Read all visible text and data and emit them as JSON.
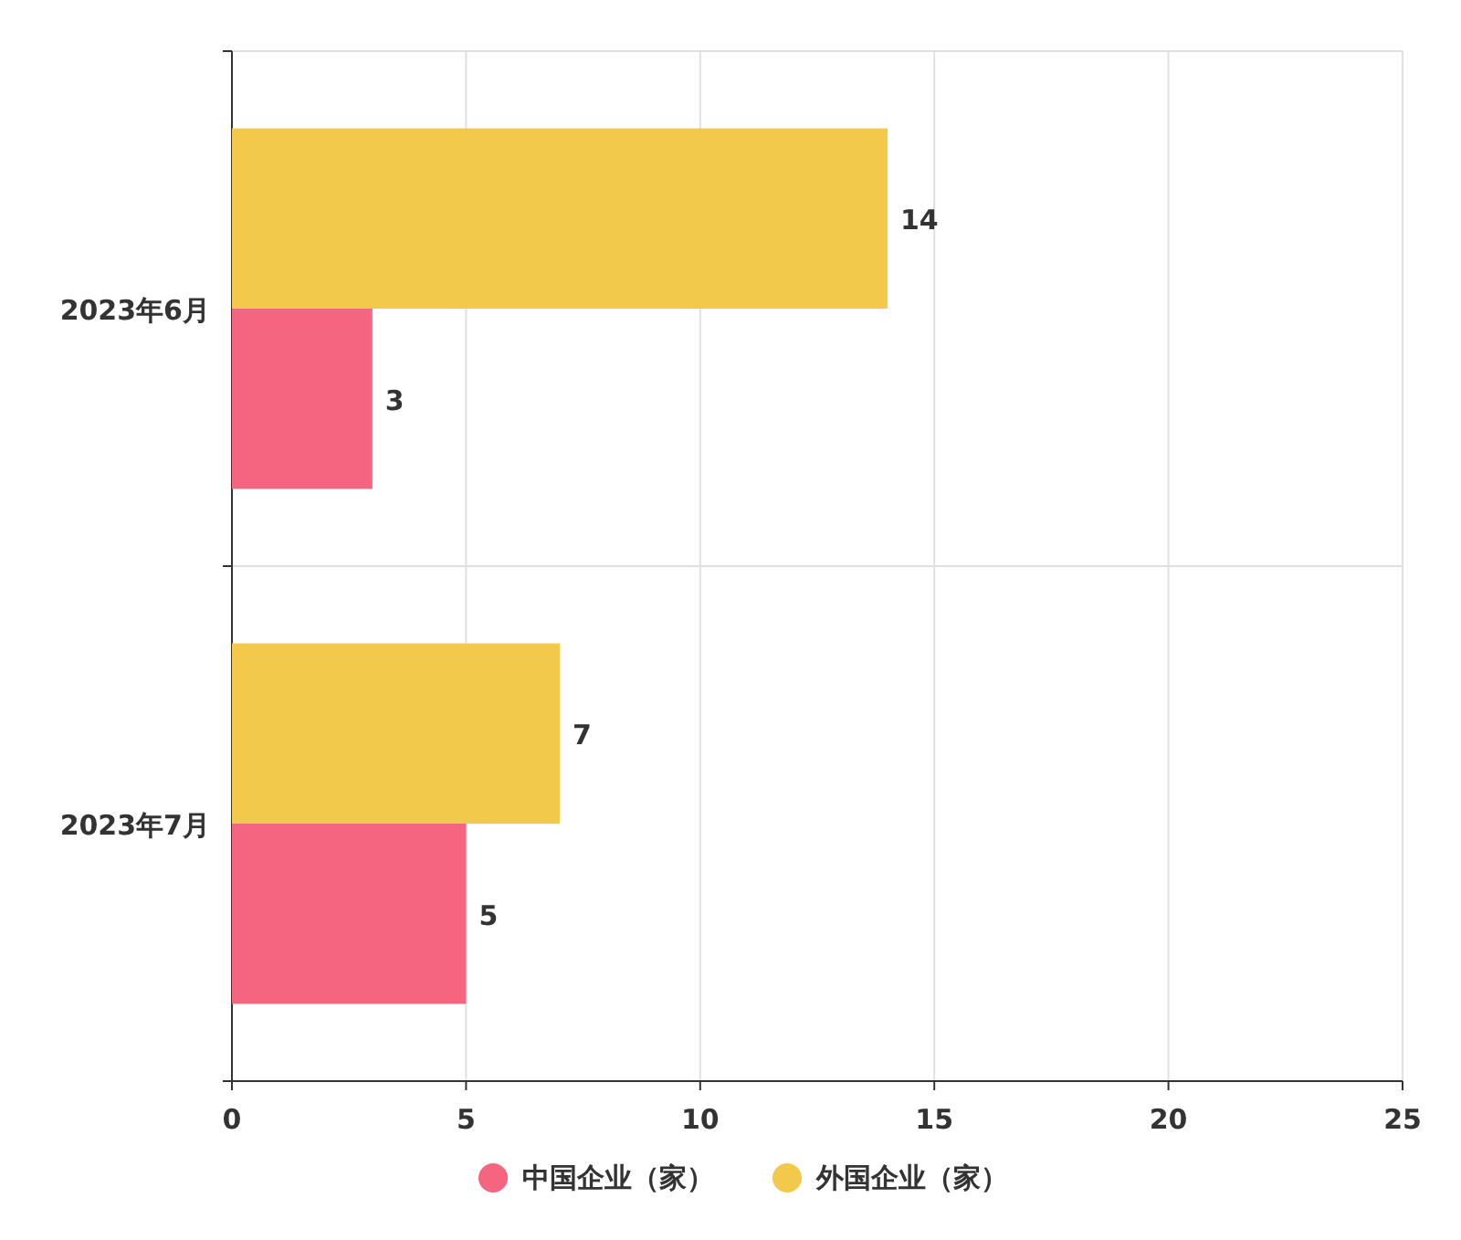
{
  "chart_data": {
    "type": "bar",
    "orientation": "horizontal",
    "categories": [
      "2023年6月",
      "2023年7月"
    ],
    "series": [
      {
        "name": "中国企业（家）",
        "color": "#f6657f",
        "values": [
          3,
          5
        ]
      },
      {
        "name": "外国企业（家）",
        "color": "#f2c94a",
        "values": [
          14,
          7
        ]
      }
    ],
    "xlim": [
      0,
      25
    ],
    "xticks": [
      0,
      5,
      10,
      15,
      20,
      25
    ],
    "grid": true,
    "legend": "bottom",
    "data_labels": true
  }
}
